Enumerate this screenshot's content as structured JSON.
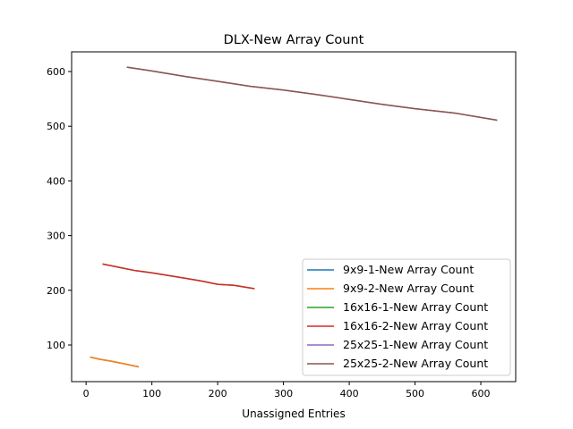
{
  "chart_data": {
    "type": "line",
    "title": "DLX-New Array Count",
    "xlabel": "Unassigned Entries",
    "ylabel": "",
    "xlim": [
      -22,
      653
    ],
    "ylim": [
      33,
      636
    ],
    "xticks": [
      0,
      100,
      200,
      300,
      400,
      500,
      600
    ],
    "yticks": [
      100,
      200,
      300,
      400,
      500,
      600
    ],
    "xtick_labels": [
      "0",
      "100",
      "200",
      "300",
      "400",
      "500",
      "600"
    ],
    "ytick_labels": [
      "100",
      "200",
      "300",
      "400",
      "500",
      "600"
    ],
    "grid": false,
    "legend_position": "lower-right",
    "series": [
      {
        "name": "9x9-1-New Array Count",
        "color": "#1f77b4",
        "x": [
          6,
          20,
          40,
          60,
          80
        ],
        "y": [
          78,
          74,
          70,
          65,
          60
        ]
      },
      {
        "name": "9x9-2-New Array Count",
        "color": "#ff7f0e",
        "x": [
          6,
          20,
          40,
          60,
          80
        ],
        "y": [
          78,
          74,
          70,
          65,
          60
        ]
      },
      {
        "name": "16x16-1-New Array Count",
        "color": "#2ca02c",
        "x": [
          25,
          50,
          75,
          100,
          125,
          150,
          175,
          200,
          225,
          256
        ],
        "y": [
          248,
          242,
          236,
          232,
          227,
          222,
          217,
          211,
          209,
          203
        ]
      },
      {
        "name": "16x16-2-New Array Count",
        "color": "#d62728",
        "x": [
          25,
          50,
          75,
          100,
          125,
          150,
          175,
          200,
          225,
          256
        ],
        "y": [
          248,
          242,
          236,
          232,
          227,
          222,
          217,
          211,
          209,
          203
        ]
      },
      {
        "name": "25x25-1-New Array Count",
        "color": "#9467bd",
        "x": [
          62,
          100,
          150,
          200,
          250,
          300,
          350,
          400,
          450,
          500,
          560,
          625
        ],
        "y": [
          608,
          601,
          591,
          582,
          573,
          566,
          558,
          549,
          540,
          532,
          524,
          511
        ]
      },
      {
        "name": "25x25-2-New Array Count",
        "color": "#8c564b",
        "x": [
          62,
          100,
          150,
          200,
          250,
          300,
          350,
          400,
          450,
          500,
          560,
          625
        ],
        "y": [
          608,
          601,
          591,
          582,
          573,
          566,
          558,
          549,
          540,
          532,
          524,
          511
        ]
      }
    ]
  }
}
